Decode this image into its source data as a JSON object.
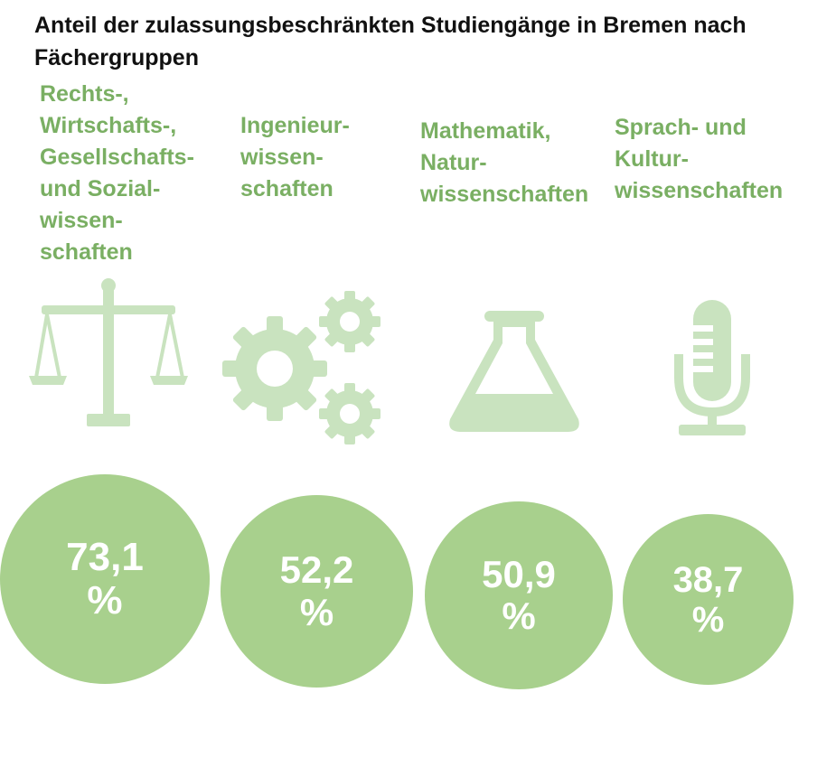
{
  "title": "Anteil der zulassungsbeschränkten Studiengänge in Bremen nach Fächergruppen",
  "colors": {
    "label": "#7aaf63",
    "icon": "#c9e3bf",
    "circle": "#a8d08d",
    "circle_text": "#ffffff"
  },
  "chart_data": {
    "type": "bar",
    "title": "Anteil der zulassungsbeschränkten Studiengänge in Bremen nach Fächergruppen",
    "categories": [
      "Rechts-, Wirtschafts-, Gesellschafts- und Sozialwissenschaften",
      "Ingenieurwissenschaften",
      "Mathematik, Naturwissenschaften",
      "Sprach- und Kulturwissenschaften"
    ],
    "values": [
      73.1,
      52.2,
      50.9,
      38.7
    ],
    "unit": "%"
  },
  "groups": [
    {
      "label": "Rechts-,\nWirtschafts-,\nGesellschafts-\nund Sozial-\nwissen-\nschaften",
      "icon": "scales-icon",
      "value_text": "73,1",
      "unit": "%"
    },
    {
      "label": "Ingenieur-\nwissen-\nschaften",
      "icon": "gears-icon",
      "value_text": "52,2",
      "unit": "%"
    },
    {
      "label": "Mathematik,\nNatur-\nwissenschaften",
      "icon": "flask-icon",
      "value_text": "50,9",
      "unit": "%"
    },
    {
      "label": "Sprach- und\nKultur-\nwissenschaften",
      "icon": "microphone-icon",
      "value_text": "38,7",
      "unit": "%"
    }
  ]
}
